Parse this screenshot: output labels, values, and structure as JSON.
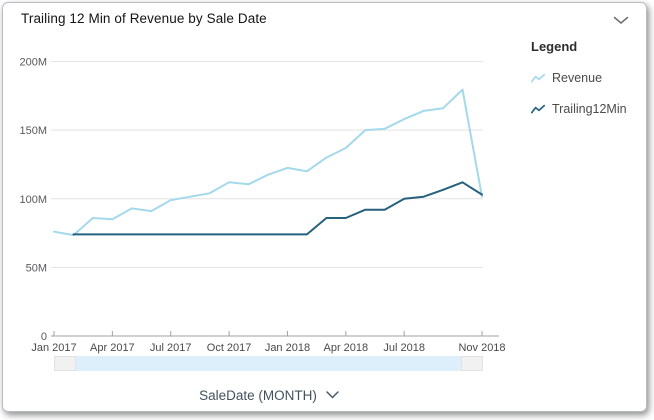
{
  "header": {
    "title": "Trailing 12 Min of Revenue by Sale Date",
    "collapse_icon": "chevron-down"
  },
  "legend": {
    "title": "Legend"
  },
  "chart_data": {
    "type": "line",
    "title": "Trailing 12 Min of Revenue by Sale Date",
    "xlabel": "SaleDate (MONTH)",
    "ylabel": "",
    "unit": "millions",
    "ylim": [
      0,
      200
    ],
    "grid": true,
    "legend_position": "right",
    "x": [
      "Jan 2017",
      "Feb 2017",
      "Mar 2017",
      "Apr 2017",
      "May 2017",
      "Jun 2017",
      "Jul 2017",
      "Aug 2017",
      "Sep 2017",
      "Oct 2017",
      "Nov 2017",
      "Dec 2017",
      "Jan 2018",
      "Feb 2018",
      "Mar 2018",
      "Apr 2018",
      "May 2018",
      "Jun 2018",
      "Jul 2018",
      "Aug 2018",
      "Sep 2018",
      "Oct 2018",
      "Nov 2018"
    ],
    "xticks": [
      {
        "index": 0,
        "label": "Jan 2017"
      },
      {
        "index": 3,
        "label": "Apr 2017"
      },
      {
        "index": 6,
        "label": "Jul 2017"
      },
      {
        "index": 9,
        "label": "Oct 2017"
      },
      {
        "index": 12,
        "label": "Jan 2018"
      },
      {
        "index": 15,
        "label": "Apr 2018"
      },
      {
        "index": 18,
        "label": "Jul 2018"
      },
      {
        "index": 22,
        "label": "Nov 2018"
      }
    ],
    "yticks": [
      {
        "value": 0,
        "label": "0"
      },
      {
        "value": 50,
        "label": "50M"
      },
      {
        "value": 100,
        "label": "100M"
      },
      {
        "value": 150,
        "label": "150M"
      },
      {
        "value": 200,
        "label": "200M"
      }
    ],
    "series": [
      {
        "name": "Revenue",
        "color": "#a3d9eb",
        "values": [
          76,
          73.5,
          86,
          85,
          93,
          91,
          99,
          101.5,
          104,
          112,
          110.5,
          117.5,
          122.5,
          120,
          130,
          137,
          150,
          151,
          158,
          164,
          166,
          179.5,
          101.5
        ]
      },
      {
        "name": "Trailing12Min",
        "color": "#26617f",
        "values": [
          null,
          74,
          74,
          74,
          74,
          74,
          74,
          74,
          74,
          74,
          74,
          74,
          74,
          74,
          86,
          86,
          92,
          92,
          100,
          101.5,
          106.5,
          112,
          103
        ]
      }
    ]
  },
  "colors": {
    "gridline": "#e3e3e3",
    "axis": "#a0a0a0",
    "y_tick_label": "#58595b",
    "x_tick_label": "#4a4a4a",
    "scrollbar_band": "#ddeffa",
    "scrollbar_handle": "#f1f1f1"
  },
  "footer": {
    "label": "SaleDate (MONTH)"
  }
}
